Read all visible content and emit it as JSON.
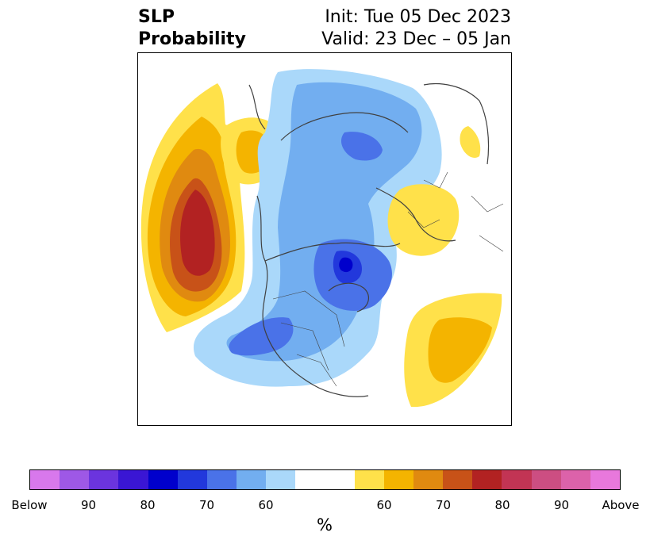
{
  "title": {
    "left_line1": "SLP",
    "left_line2": "Probability",
    "init": "Init: Tue 05 Dec 2023",
    "valid": "Valid: 23 Dec – 05 Jan"
  },
  "colorbar": {
    "below_colors": [
      "#d878ec",
      "#9e58e6",
      "#6b34de",
      "#3a16d4",
      "#0000cc",
      "#2238dc",
      "#4a72e8",
      "#72aef0",
      "#aad8fa"
    ],
    "neutral_color": "#ffffff",
    "above_colors": [
      "#ffe14a",
      "#f4b400",
      "#e08a10",
      "#c85218",
      "#b22222",
      "#c23454",
      "#cc4e82",
      "#dc62aa",
      "#e878dc"
    ],
    "tick_labels": [
      "Below",
      "90",
      "80",
      "70",
      "60",
      "60",
      "70",
      "80",
      "90",
      "Above"
    ],
    "unit_label": "%"
  },
  "map": {
    "projection": "north-polar-stereographic",
    "features": [
      "coastlines",
      "country-borders",
      "state-borders"
    ],
    "anomaly_regions": [
      {
        "name": "north-pacific-high",
        "sign": "above",
        "peak_category": "80"
      },
      {
        "name": "greenland-arctic-low",
        "sign": "below",
        "peak_category": "80"
      },
      {
        "name": "north-america-low",
        "sign": "below",
        "peak_category": "70"
      },
      {
        "name": "scandinavia-europe-high",
        "sign": "above",
        "peak_category": "60"
      },
      {
        "name": "central-siberia-low",
        "sign": "below",
        "peak_category": "70"
      },
      {
        "name": "north-atlantic-high",
        "sign": "above",
        "peak_category": "60"
      }
    ]
  }
}
